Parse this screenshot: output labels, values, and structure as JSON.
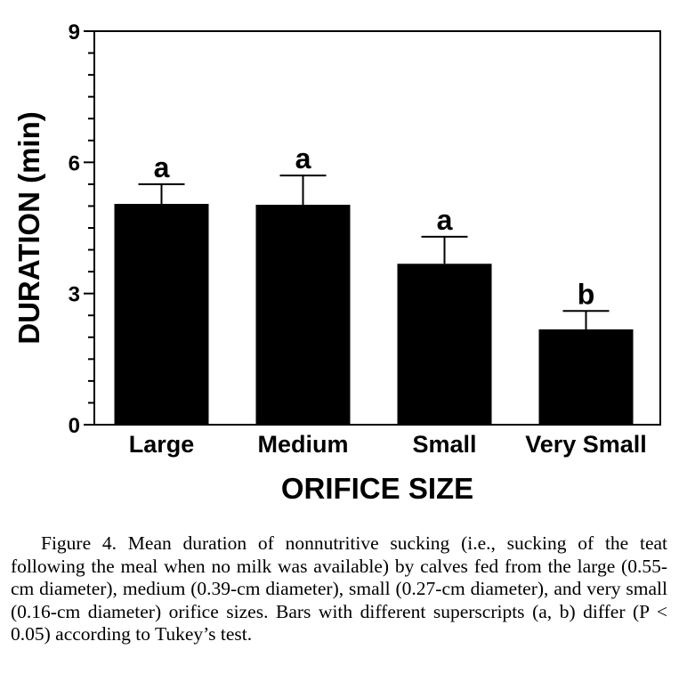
{
  "chart_data": {
    "type": "bar",
    "categories": [
      "Large",
      "Medium",
      "Small",
      "Very Small"
    ],
    "values": [
      5.05,
      5.03,
      3.68,
      2.18
    ],
    "errors": [
      0.45,
      0.67,
      0.62,
      0.42
    ],
    "superscripts": [
      "a",
      "a",
      "a",
      "b"
    ],
    "xlabel": "ORIFICE SIZE",
    "ylabel": "DURATION (min)",
    "ylim": [
      0,
      9
    ],
    "yticks": [
      0,
      3,
      6,
      9
    ],
    "grid": false,
    "bar_color": "#000000"
  },
  "caption": "Figure 4. Mean duration of nonnutritive sucking (i.e., sucking of the teat following the meal when no milk was available) by calves fed from the large (0.55-cm diameter), medium (0.39-cm diameter), small (0.27-cm diameter), and very small (0.16-cm diameter) orifice sizes. Bars with different superscripts (a, b) differ (P < 0.05) according to Tukey’s test."
}
